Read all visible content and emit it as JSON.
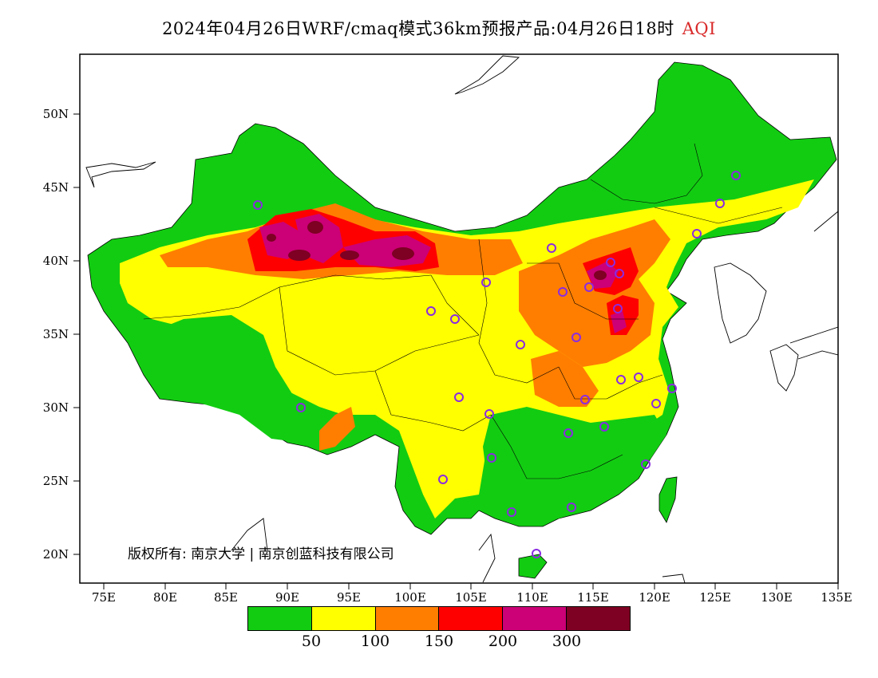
{
  "title": {
    "text": "2024年04月26日WRF/cmaq模式36km预报产品:04月26日18时",
    "variable": "AQI"
  },
  "axes": {
    "lat_labels": [
      "50N",
      "45N",
      "40N",
      "35N",
      "30N",
      "25N",
      "20N"
    ],
    "lon_labels": [
      "75E",
      "80E",
      "85E",
      "90E",
      "95E",
      "100E",
      "105E",
      "110E",
      "115E",
      "120E",
      "125E",
      "130E",
      "135E"
    ],
    "lat_range": [
      18,
      54
    ],
    "lon_range": [
      73,
      135
    ]
  },
  "copyright": "版权所有: 南京大学 | 南京创蓝科技有限公司",
  "legend": {
    "colors": [
      "#12cc12",
      "#ffff00",
      "#ff7e00",
      "#ff0000",
      "#cc0077",
      "#7e0023"
    ],
    "labels": [
      "50",
      "100",
      "150",
      "200",
      "300"
    ]
  },
  "colors": {
    "good": "#12cc12",
    "moderate": "#ffff00",
    "usg": "#ff7e00",
    "unhealthy": "#ff0000",
    "very_unhealthy": "#cc0077",
    "hazardous": "#7e0023",
    "station_marker": "#8a2be2",
    "sea": "#ffffff"
  }
}
